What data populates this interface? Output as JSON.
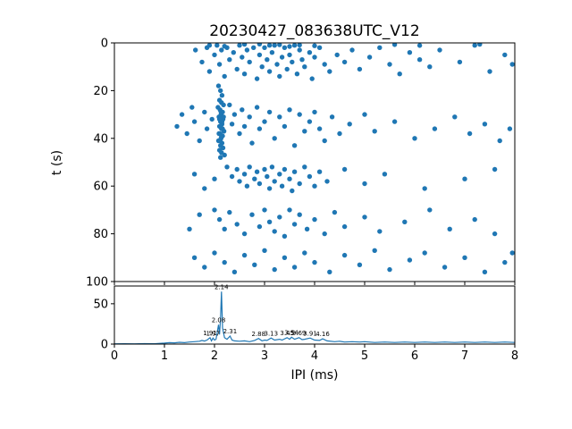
{
  "colors": {
    "marker": "#1f77b4",
    "line": "#1f77b4",
    "axis": "#000000",
    "background": "#ffffff"
  },
  "chart_data": [
    {
      "type": "scatter",
      "title": "20230427_083638UTC_V12",
      "xlabel": "",
      "ylabel": "t (s)",
      "xlim": [
        0,
        8
      ],
      "ylim": [
        100,
        0
      ],
      "yticks": [
        0,
        20,
        40,
        60,
        80,
        100
      ],
      "xticks": [
        0,
        1,
        2,
        3,
        4,
        5,
        6,
        7,
        8
      ],
      "show_xtick_labels": false,
      "marker_color": "#1f77b4",
      "points": [
        [
          1.62,
          3
        ],
        [
          1.75,
          8
        ],
        [
          1.85,
          2
        ],
        [
          1.9,
          12
        ],
        [
          2.0,
          5
        ],
        [
          2.05,
          1
        ],
        [
          2.1,
          9
        ],
        [
          2.14,
          3
        ],
        [
          2.2,
          14
        ],
        [
          2.25,
          2
        ],
        [
          2.3,
          7
        ],
        [
          2.38,
          4
        ],
        [
          2.45,
          11
        ],
        [
          2.5,
          1
        ],
        [
          2.55,
          6
        ],
        [
          2.6,
          13
        ],
        [
          2.65,
          3
        ],
        [
          2.7,
          8
        ],
        [
          2.78,
          2
        ],
        [
          2.85,
          15
        ],
        [
          2.9,
          5
        ],
        [
          2.95,
          10
        ],
        [
          3.0,
          2
        ],
        [
          3.05,
          7
        ],
        [
          3.1,
          12
        ],
        [
          3.15,
          4
        ],
        [
          3.2,
          1
        ],
        [
          3.25,
          9
        ],
        [
          3.3,
          14
        ],
        [
          3.35,
          6
        ],
        [
          3.4,
          2
        ],
        [
          3.45,
          11
        ],
        [
          3.5,
          5
        ],
        [
          3.55,
          8
        ],
        [
          3.6,
          1
        ],
        [
          3.65,
          13
        ],
        [
          3.7,
          3
        ],
        [
          3.75,
          7
        ],
        [
          3.8,
          10
        ],
        [
          3.9,
          4
        ],
        [
          3.95,
          15
        ],
        [
          4.0,
          6
        ],
        [
          4.1,
          2
        ],
        [
          4.2,
          9
        ],
        [
          4.3,
          12
        ],
        [
          4.45,
          5
        ],
        [
          4.6,
          8
        ],
        [
          4.75,
          3
        ],
        [
          4.9,
          11
        ],
        [
          5.1,
          6
        ],
        [
          5.3,
          2
        ],
        [
          5.5,
          9
        ],
        [
          5.7,
          13
        ],
        [
          5.9,
          4
        ],
        [
          6.1,
          7
        ],
        [
          6.3,
          10
        ],
        [
          6.5,
          3
        ],
        [
          6.9,
          8
        ],
        [
          7.2,
          1
        ],
        [
          7.5,
          12
        ],
        [
          7.8,
          5
        ],
        [
          7.95,
          9
        ],
        [
          2.9,
          0.5
        ],
        [
          3.1,
          1
        ],
        [
          3.3,
          0.8
        ],
        [
          3.5,
          1.5
        ],
        [
          2.6,
          0.6
        ],
        [
          4.0,
          1.2
        ],
        [
          3.7,
          0.9
        ],
        [
          2.2,
          1.4
        ],
        [
          5.6,
          0.7
        ],
        [
          6.1,
          1.1
        ],
        [
          7.3,
          0.6
        ],
        [
          1.9,
          1.0
        ],
        [
          2.08,
          18
        ],
        [
          2.12,
          20
        ],
        [
          2.15,
          22
        ],
        [
          2.1,
          24
        ],
        [
          2.14,
          25
        ],
        [
          2.18,
          26
        ],
        [
          2.11,
          28
        ],
        [
          2.16,
          29
        ],
        [
          2.13,
          30
        ],
        [
          2.09,
          31
        ],
        [
          2.17,
          32
        ],
        [
          2.12,
          33
        ],
        [
          2.15,
          34
        ],
        [
          2.1,
          35
        ],
        [
          2.14,
          36
        ],
        [
          2.19,
          37
        ],
        [
          2.11,
          38
        ],
        [
          2.16,
          39
        ],
        [
          2.13,
          40
        ],
        [
          2.08,
          41
        ],
        [
          2.15,
          42
        ],
        [
          2.12,
          43
        ],
        [
          2.17,
          44
        ],
        [
          2.1,
          45
        ],
        [
          2.14,
          46
        ],
        [
          2.2,
          47
        ],
        [
          2.12,
          48
        ],
        [
          2.07,
          27
        ],
        [
          2.13,
          29
        ],
        [
          2.18,
          31
        ],
        [
          2.1,
          32
        ],
        [
          2.15,
          33
        ],
        [
          2.12,
          35
        ],
        [
          2.16,
          36
        ],
        [
          2.09,
          38
        ],
        [
          2.14,
          39
        ],
        [
          2.11,
          41
        ],
        [
          1.25,
          35
        ],
        [
          1.35,
          30
        ],
        [
          1.45,
          38
        ],
        [
          1.55,
          27
        ],
        [
          1.6,
          33
        ],
        [
          1.7,
          41
        ],
        [
          1.8,
          29
        ],
        [
          1.85,
          36
        ],
        [
          1.95,
          32
        ],
        [
          2.3,
          26
        ],
        [
          2.35,
          34
        ],
        [
          2.4,
          30
        ],
        [
          2.5,
          38
        ],
        [
          2.55,
          28
        ],
        [
          2.6,
          35
        ],
        [
          2.7,
          31
        ],
        [
          2.75,
          42
        ],
        [
          2.85,
          27
        ],
        [
          2.9,
          36
        ],
        [
          3.0,
          33
        ],
        [
          3.1,
          29
        ],
        [
          3.2,
          40
        ],
        [
          3.3,
          31
        ],
        [
          3.4,
          35
        ],
        [
          3.5,
          28
        ],
        [
          3.6,
          43
        ],
        [
          3.7,
          30
        ],
        [
          3.8,
          37
        ],
        [
          3.9,
          33
        ],
        [
          4.0,
          29
        ],
        [
          4.1,
          36
        ],
        [
          4.2,
          41
        ],
        [
          4.35,
          31
        ],
        [
          4.5,
          38
        ],
        [
          4.7,
          34
        ],
        [
          5.0,
          30
        ],
        [
          5.2,
          37
        ],
        [
          5.6,
          33
        ],
        [
          6.0,
          40
        ],
        [
          6.4,
          36
        ],
        [
          6.8,
          31
        ],
        [
          7.1,
          38
        ],
        [
          7.4,
          34
        ],
        [
          7.7,
          41
        ],
        [
          7.9,
          36
        ],
        [
          2.25,
          52
        ],
        [
          2.35,
          56
        ],
        [
          2.45,
          53
        ],
        [
          2.5,
          58
        ],
        [
          2.6,
          55
        ],
        [
          2.65,
          60
        ],
        [
          2.7,
          52
        ],
        [
          2.8,
          57
        ],
        [
          2.85,
          54
        ],
        [
          2.9,
          59
        ],
        [
          3.0,
          53
        ],
        [
          3.05,
          56
        ],
        [
          3.1,
          61
        ],
        [
          3.15,
          52
        ],
        [
          3.2,
          58
        ],
        [
          3.3,
          55
        ],
        [
          3.35,
          60
        ],
        [
          3.4,
          53
        ],
        [
          3.5,
          57
        ],
        [
          3.55,
          62
        ],
        [
          3.6,
          54
        ],
        [
          3.7,
          59
        ],
        [
          3.8,
          52
        ],
        [
          3.9,
          56
        ],
        [
          4.0,
          60
        ],
        [
          4.1,
          54
        ],
        [
          4.25,
          58
        ],
        [
          1.6,
          55
        ],
        [
          1.8,
          61
        ],
        [
          2.0,
          57
        ],
        [
          4.6,
          53
        ],
        [
          5.0,
          59
        ],
        [
          5.4,
          55
        ],
        [
          6.2,
          61
        ],
        [
          7.0,
          57
        ],
        [
          7.6,
          53
        ],
        [
          2.0,
          70
        ],
        [
          2.1,
          74
        ],
        [
          2.2,
          78
        ],
        [
          2.3,
          71
        ],
        [
          2.45,
          76
        ],
        [
          2.6,
          80
        ],
        [
          2.75,
          72
        ],
        [
          2.9,
          77
        ],
        [
          3.0,
          70
        ],
        [
          3.1,
          75
        ],
        [
          3.2,
          79
        ],
        [
          3.3,
          73
        ],
        [
          3.4,
          81
        ],
        [
          3.5,
          70
        ],
        [
          3.6,
          76
        ],
        [
          3.7,
          72
        ],
        [
          3.85,
          78
        ],
        [
          4.0,
          74
        ],
        [
          4.2,
          80
        ],
        [
          4.4,
          71
        ],
        [
          4.6,
          77
        ],
        [
          5.0,
          73
        ],
        [
          5.3,
          79
        ],
        [
          5.8,
          75
        ],
        [
          6.3,
          70
        ],
        [
          6.7,
          78
        ],
        [
          7.2,
          74
        ],
        [
          7.6,
          80
        ],
        [
          1.7,
          72
        ],
        [
          1.5,
          78
        ],
        [
          1.6,
          90
        ],
        [
          1.8,
          94
        ],
        [
          2.0,
          88
        ],
        [
          2.2,
          92
        ],
        [
          2.4,
          96
        ],
        [
          2.6,
          89
        ],
        [
          2.8,
          93
        ],
        [
          3.0,
          87
        ],
        [
          3.2,
          95
        ],
        [
          3.4,
          90
        ],
        [
          3.6,
          94
        ],
        [
          3.8,
          88
        ],
        [
          4.0,
          92
        ],
        [
          4.3,
          96
        ],
        [
          4.6,
          89
        ],
        [
          4.9,
          93
        ],
        [
          5.2,
          87
        ],
        [
          5.5,
          95
        ],
        [
          5.9,
          91
        ],
        [
          6.2,
          88
        ],
        [
          6.6,
          94
        ],
        [
          7.0,
          90
        ],
        [
          7.4,
          96
        ],
        [
          7.8,
          92
        ],
        [
          7.95,
          88
        ]
      ]
    },
    {
      "type": "line",
      "title": "",
      "xlabel": "IPI (ms)",
      "ylabel": "",
      "xlim": [
        0,
        8
      ],
      "ylim": [
        0,
        72
      ],
      "yticks": [
        0,
        50
      ],
      "xticks": [
        0,
        1,
        2,
        3,
        4,
        5,
        6,
        7,
        8
      ],
      "show_xtick_labels": true,
      "line_color": "#1f77b4",
      "points": [
        [
          0,
          0.3
        ],
        [
          0.2,
          0.4
        ],
        [
          0.4,
          0.3
        ],
        [
          0.6,
          0.5
        ],
        [
          0.8,
          0.4
        ],
        [
          1.0,
          1.2
        ],
        [
          1.1,
          1.8
        ],
        [
          1.2,
          1.5
        ],
        [
          1.3,
          2.2
        ],
        [
          1.4,
          1.8
        ],
        [
          1.5,
          2.5
        ],
        [
          1.6,
          3.0
        ],
        [
          1.7,
          3.5
        ],
        [
          1.75,
          4.5
        ],
        [
          1.8,
          3.8
        ],
        [
          1.85,
          5.0
        ],
        [
          1.91,
          8.0
        ],
        [
          1.94,
          4.0
        ],
        [
          1.97,
          7.5
        ],
        [
          2.0,
          5.0
        ],
        [
          2.03,
          6.0
        ],
        [
          2.08,
          24
        ],
        [
          2.1,
          12
        ],
        [
          2.12,
          30
        ],
        [
          2.14,
          65
        ],
        [
          2.16,
          20
        ],
        [
          2.2,
          8
        ],
        [
          2.25,
          6
        ],
        [
          2.31,
          10
        ],
        [
          2.35,
          5
        ],
        [
          2.4,
          4
        ],
        [
          2.5,
          3.5
        ],
        [
          2.6,
          4
        ],
        [
          2.7,
          3
        ],
        [
          2.8,
          4.5
        ],
        [
          2.88,
          7
        ],
        [
          2.95,
          4
        ],
        [
          3.0,
          5
        ],
        [
          3.05,
          4.5
        ],
        [
          3.13,
          7.5
        ],
        [
          3.2,
          5
        ],
        [
          3.3,
          6
        ],
        [
          3.35,
          5
        ],
        [
          3.45,
          8
        ],
        [
          3.5,
          6
        ],
        [
          3.54,
          8.5
        ],
        [
          3.6,
          6
        ],
        [
          3.69,
          8
        ],
        [
          3.75,
          5.5
        ],
        [
          3.8,
          6
        ],
        [
          3.91,
          7.5
        ],
        [
          4.0,
          5
        ],
        [
          4.1,
          4.5
        ],
        [
          4.16,
          6.5
        ],
        [
          4.25,
          4
        ],
        [
          4.4,
          3
        ],
        [
          4.5,
          3.5
        ],
        [
          4.6,
          2.5
        ],
        [
          4.75,
          3
        ],
        [
          4.9,
          2.5
        ],
        [
          5.0,
          3
        ],
        [
          5.2,
          2
        ],
        [
          5.4,
          2.5
        ],
        [
          5.6,
          2
        ],
        [
          5.8,
          2.5
        ],
        [
          6.0,
          2
        ],
        [
          6.2,
          2.5
        ],
        [
          6.4,
          2
        ],
        [
          6.6,
          2.5
        ],
        [
          6.8,
          2
        ],
        [
          7.0,
          2.5
        ],
        [
          7.2,
          2
        ],
        [
          7.4,
          2.5
        ],
        [
          7.6,
          2
        ],
        [
          7.8,
          2.5
        ],
        [
          8.0,
          2
        ]
      ],
      "annotations": [
        {
          "x": 1.91,
          "y": 9,
          "label": "1.91"
        },
        {
          "x": 1.97,
          "y": 8.5,
          "label": "1.97"
        },
        {
          "x": 2.08,
          "y": 25,
          "label": "2.08"
        },
        {
          "x": 2.14,
          "y": 66,
          "label": "2.14"
        },
        {
          "x": 2.31,
          "y": 11,
          "label": "2.31"
        },
        {
          "x": 2.88,
          "y": 8,
          "label": "2.88"
        },
        {
          "x": 3.13,
          "y": 8.5,
          "label": "3.13"
        },
        {
          "x": 3.45,
          "y": 9,
          "label": "3.45"
        },
        {
          "x": 3.54,
          "y": 9.5,
          "label": "3.54"
        },
        {
          "x": 3.69,
          "y": 9,
          "label": "3.69"
        },
        {
          "x": 3.91,
          "y": 8.5,
          "label": "3.91"
        },
        {
          "x": 4.16,
          "y": 7.5,
          "label": "4.16"
        }
      ]
    }
  ]
}
